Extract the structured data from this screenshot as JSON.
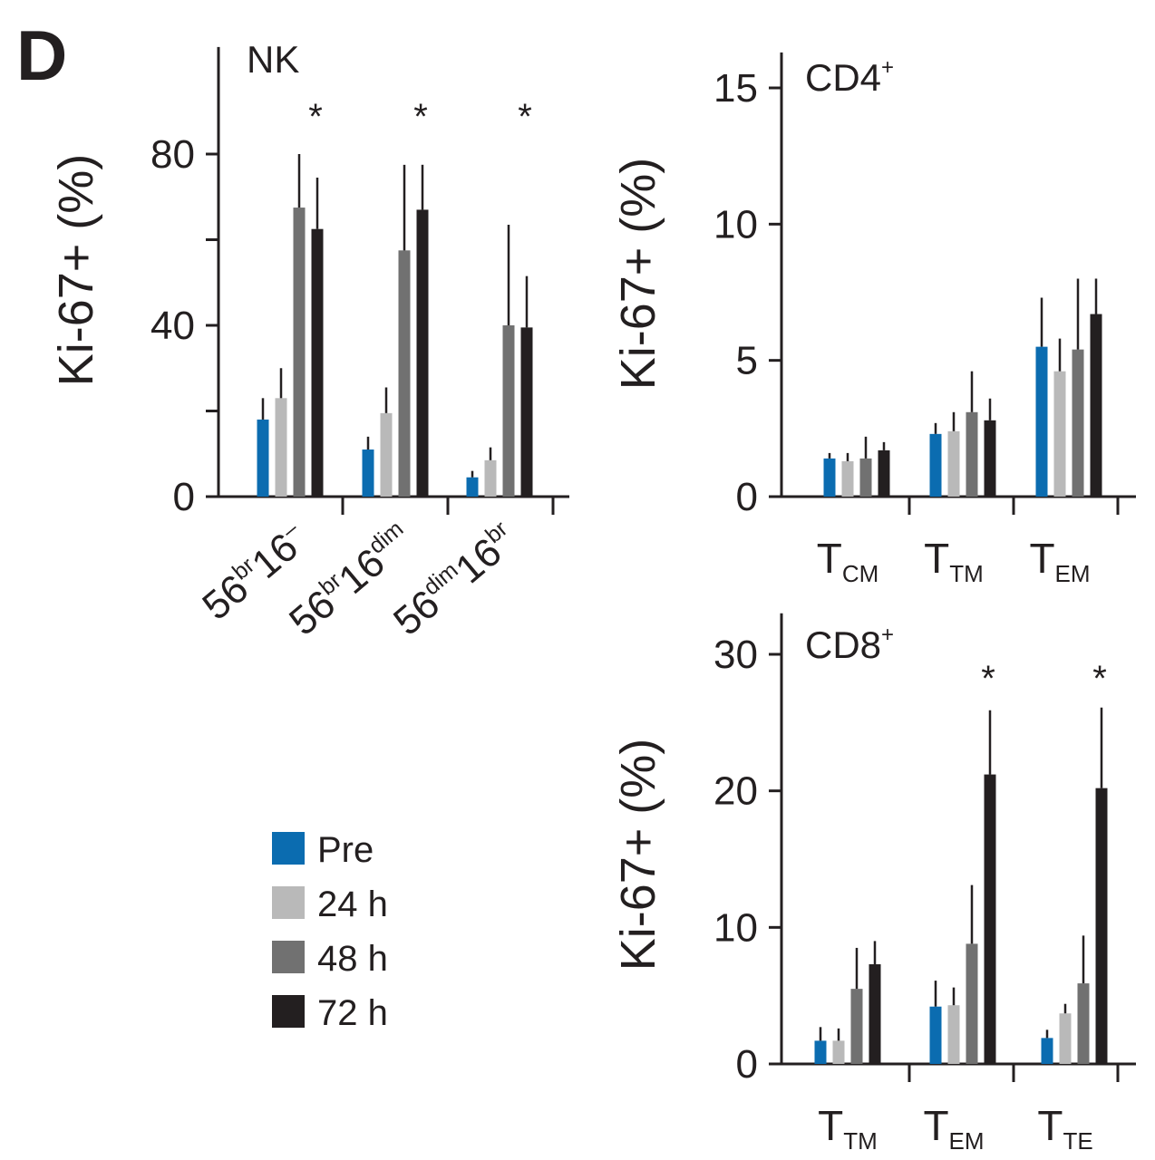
{
  "panel_label": "D",
  "colors": {
    "Pre": "#0b6cb0",
    "24 h": "#b9b9b9",
    "48 h": "#717171",
    "72 h": "#231f20",
    "axis": "#231f20"
  },
  "legend": [
    "Pre",
    "24 h",
    "48 h",
    "72 h"
  ],
  "chart_data": [
    {
      "type": "bar",
      "id": "nk",
      "title": "NK",
      "ylabel": "Ki-67+ (%)",
      "ylim": [
        0,
        105
      ],
      "yticks": [
        0,
        40,
        80
      ],
      "minor_yticks": [
        20,
        60
      ],
      "categories": [
        {
          "base": "56",
          "sup1": "br",
          "mid": "16",
          "sup2": "–"
        },
        {
          "base": "56",
          "sup1": "br",
          "mid": "16",
          "sup2": "dim"
        },
        {
          "base": "56",
          "sup1": "dim",
          "mid": "16",
          "sup2": "br"
        }
      ],
      "series": [
        {
          "name": "Pre",
          "values": [
            18,
            11,
            4.5
          ],
          "errors": [
            5,
            3,
            1.5
          ]
        },
        {
          "name": "24 h",
          "values": [
            23,
            19.5,
            8.5
          ],
          "errors": [
            7,
            6,
            3
          ]
        },
        {
          "name": "48 h",
          "values": [
            67.5,
            57.5,
            40
          ],
          "errors": [
            12.5,
            20,
            23.5
          ]
        },
        {
          "name": "72 h",
          "values": [
            62.5,
            67,
            39.5
          ],
          "errors": [
            12,
            10.5,
            12
          ]
        }
      ],
      "significance": [
        "*",
        "*",
        "*"
      ]
    },
    {
      "type": "bar",
      "id": "cd4",
      "title": "CD4",
      "title_sup": "+",
      "ylabel": "Ki-67+ (%)",
      "ylim": [
        0,
        16.3
      ],
      "yticks": [
        0,
        5,
        10,
        15
      ],
      "categories": [
        {
          "base": "T",
          "sub": "CM"
        },
        {
          "base": "T",
          "sub": "TM"
        },
        {
          "base": "T",
          "sub": "EM"
        }
      ],
      "series": [
        {
          "name": "Pre",
          "values": [
            1.4,
            2.3,
            5.5
          ],
          "errors": [
            0.2,
            0.4,
            1.8
          ]
        },
        {
          "name": "24 h",
          "values": [
            1.3,
            2.4,
            4.6
          ],
          "errors": [
            0.3,
            0.7,
            1.2
          ]
        },
        {
          "name": "48 h",
          "values": [
            1.4,
            3.1,
            5.4
          ],
          "errors": [
            0.8,
            1.5,
            2.6
          ]
        },
        {
          "name": "72 h",
          "values": [
            1.7,
            2.8,
            6.7
          ],
          "errors": [
            0.3,
            0.8,
            1.3
          ]
        }
      ]
    },
    {
      "type": "bar",
      "id": "cd8",
      "title": "CD8",
      "title_sup": "+",
      "ylabel": "Ki-67+ (%)",
      "ylim": [
        0,
        33
      ],
      "yticks": [
        0,
        10,
        20,
        30
      ],
      "categories": [
        {
          "base": "T",
          "sub": "TM"
        },
        {
          "base": "T",
          "sub": "EM"
        },
        {
          "base": "T",
          "sub": "TE"
        }
      ],
      "series": [
        {
          "name": "Pre",
          "values": [
            1.7,
            4.2,
            1.9
          ],
          "errors": [
            1,
            1.9,
            0.6
          ]
        },
        {
          "name": "24 h",
          "values": [
            1.7,
            4.3,
            3.7
          ],
          "errors": [
            0.9,
            1.3,
            0.7
          ]
        },
        {
          "name": "48 h",
          "values": [
            5.5,
            8.8,
            5.9
          ],
          "errors": [
            3,
            4.3,
            3.5
          ]
        },
        {
          "name": "72 h",
          "values": [
            7.3,
            21.2,
            20.2
          ],
          "errors": [
            1.7,
            4.7,
            5.9
          ]
        }
      ],
      "significance": [
        "",
        "*",
        "*"
      ]
    }
  ]
}
